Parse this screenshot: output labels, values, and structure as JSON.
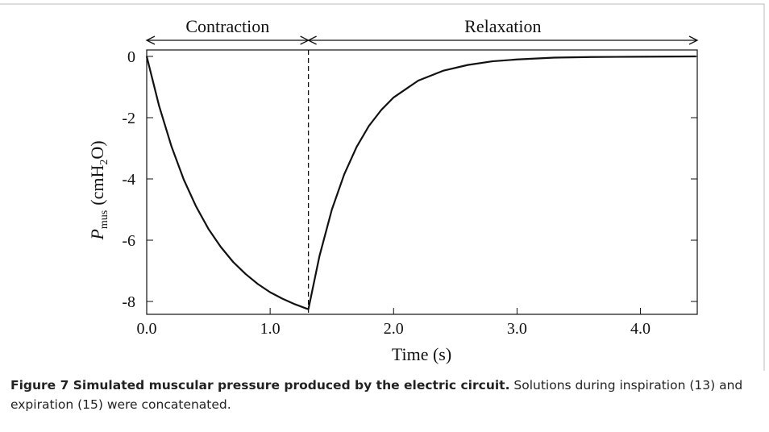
{
  "chart_data": {
    "type": "line",
    "x_label": "Time (s)",
    "y_label_parts": [
      "P",
      "mus",
      "(cmH",
      "2",
      "O)"
    ],
    "x": [
      0,
      0.1,
      0.2,
      0.3,
      0.4,
      0.5,
      0.6,
      0.7,
      0.8,
      0.9,
      1.0,
      1.1,
      1.2,
      1.3,
      1.31,
      1.4,
      1.5,
      1.6,
      1.7,
      1.8,
      1.9,
      2.0,
      2.2,
      2.4,
      2.6,
      2.8,
      3.0,
      3.3,
      3.6,
      4.0,
      4.45
    ],
    "series": [
      {
        "color": "#111111",
        "values": [
          0,
          -1.61,
          -2.93,
          -4.02,
          -4.9,
          -5.63,
          -6.22,
          -6.71,
          -7.1,
          -7.43,
          -7.7,
          -7.91,
          -8.09,
          -8.24,
          -8.25,
          -6.51,
          -5.0,
          -3.85,
          -2.96,
          -2.27,
          -1.75,
          -1.34,
          -0.79,
          -0.47,
          -0.28,
          -0.16,
          -0.1,
          -0.04,
          -0.02,
          -0.01,
          0
        ]
      }
    ],
    "xlim": [
      0,
      4.46
    ],
    "ylim": [
      -8.42,
      0.21
    ],
    "xticks": [
      {
        "value": 0,
        "label": "0.0"
      },
      {
        "value": 1,
        "label": "1.0"
      },
      {
        "value": 2,
        "label": "2.0"
      },
      {
        "value": 3,
        "label": "3.0"
      },
      {
        "value": 4,
        "label": "4.0"
      }
    ],
    "yticks": [
      0,
      -2,
      -4,
      -6,
      -8
    ],
    "vline": 1.31,
    "annotations": [
      {
        "text": "Contraction",
        "x": [
          0,
          1.31
        ]
      },
      {
        "text": "Relaxation",
        "x": [
          1.31,
          4.46
        ]
      }
    ],
    "grid": false
  },
  "caption": {
    "title": "Figure 7 Simulated muscular pressure produced by the electric circuit.",
    "text": "Solutions during inspiration (13) and expiration (15) were concatenated."
  }
}
